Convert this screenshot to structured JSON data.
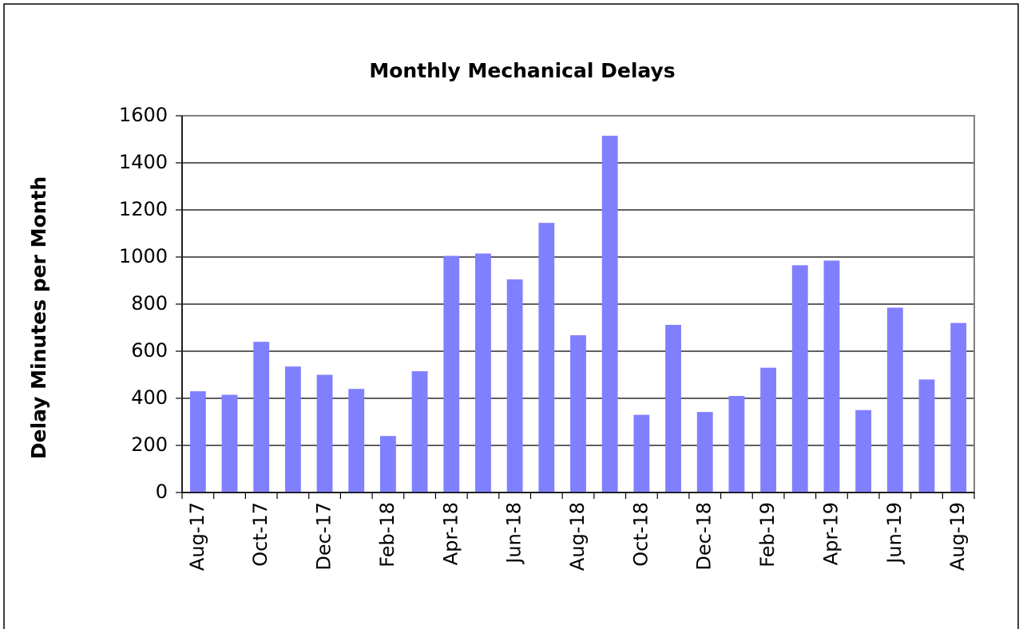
{
  "chart_data": {
    "type": "bar",
    "title": "Monthly Mechanical Delays",
    "y_label": "Delay Minutes per Month",
    "categories": [
      "Aug-17",
      null,
      "Oct-17",
      null,
      "Dec-17",
      null,
      "Feb-18",
      null,
      "Apr-18",
      null,
      "Jun-18",
      null,
      "Aug-18",
      null,
      "Oct-18",
      null,
      "Dec-18",
      null,
      "Feb-19",
      null,
      "Apr-19",
      null,
      "Jun-19",
      null,
      "Aug-19"
    ],
    "values": [
      430,
      415,
      640,
      535,
      500,
      440,
      240,
      515,
      1005,
      1015,
      905,
      1145,
      668,
      1515,
      330,
      712,
      342,
      410,
      530,
      965,
      985,
      350,
      785,
      480,
      720
    ],
    "color": "#8080ff",
    "ylim": [
      0,
      1600
    ],
    "yticks": [
      0,
      200,
      400,
      600,
      800,
      1000,
      1200,
      1400,
      1600
    ],
    "grid": true
  }
}
